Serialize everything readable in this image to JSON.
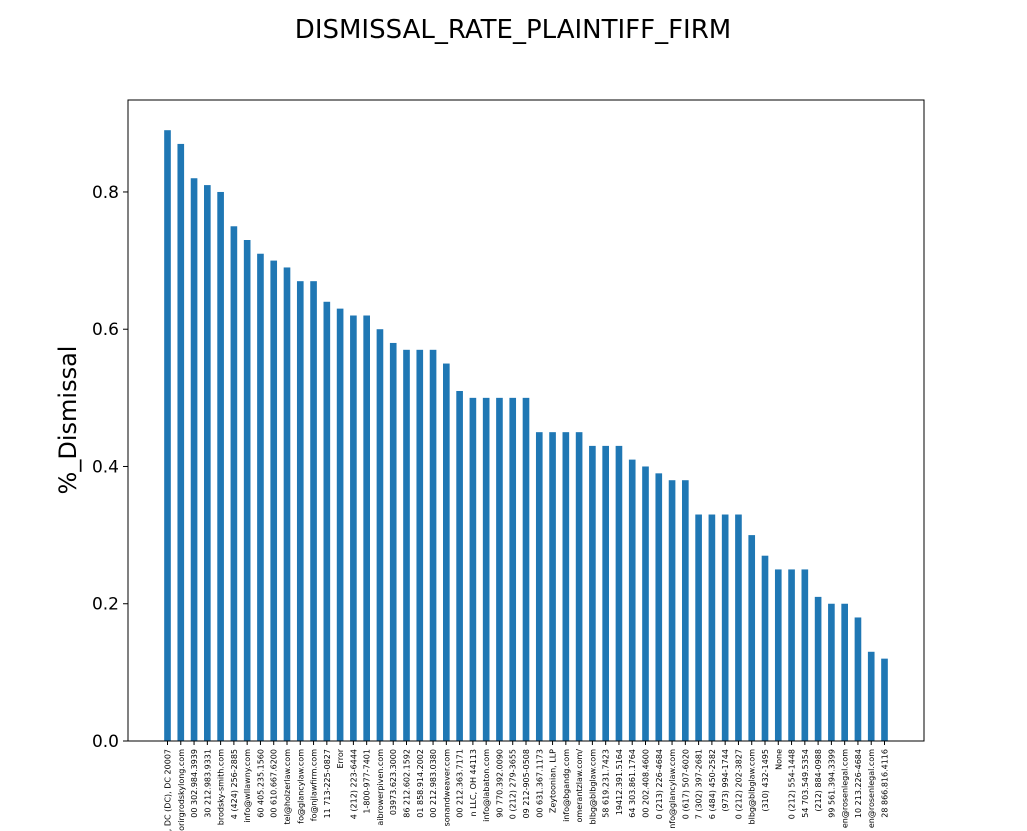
{
  "chart_data": {
    "type": "bar",
    "title": "DISMISSAL_RATE_PLAINTIFF_FIRM",
    "xlabel": "",
    "ylabel": "%_Dismissal",
    "ylim": [
      0,
      0.934
    ],
    "yticks": [
      "0.0",
      "0.2",
      "0.4",
      "0.6",
      "0.8"
    ],
    "grid": false,
    "bar_color": "#1f77b4",
    "categories": [
      ", DC (DC), DC 20007",
      "orirgrodskylong.com",
      "00 302.984.3939",
      "30 212.983.9331",
      "brodsky-smith.com",
      "4 (424) 256-2885",
      "info@wllawny.com",
      "60 405.235.1560",
      "00 610.667.6200",
      "tel@holzerlaw.com",
      "fo@glancylaw.com",
      "fo@njlawfirm.com",
      "11 713-225-0827",
      "Error",
      "4 (212) 223-6444",
      "1-800-977-7401",
      "aibrowerpiven.com",
      "03973.623.3000",
      "86 212.602.1592",
      "01 858.914.2002",
      "00 212.983.0380",
      "sonandweaver.com",
      "00 212.363.7171",
      "n LLC, OH 44113",
      "info@labaton.com",
      "90 770.392.0090",
      "0 (212) 279-3655",
      "09 212-905-0508",
      "00 631.367.1173",
      "Zeytoonian, LLP",
      "info@bgandg.com",
      "omerantzlaw.com/",
      "blbg@blbglaw.com",
      "58 619.231.7423",
      "19412.391.5164",
      "64 303.861.1764",
      "00 202.408.4600",
      "0 (213) 226-4684",
      "nfo@glancylaw.com",
      "0 (617) 507-6020",
      "7 (302) 397-2681",
      "6 (484) 450-2582",
      "(973) 994-1744",
      "0 (212) 202-3827",
      "blbg@blbglaw.com",
      "(310) 432-1495",
      "None",
      "0 (212) 554-1448",
      "54 703.549.5354",
      "(212) 884-0988",
      "99 561.394.3399",
      "en@rosenlegal.com",
      "10 213.226-4684",
      "en@rosenlegal.com",
      "28 866.816.4116"
    ],
    "values": [
      0.89,
      0.87,
      0.82,
      0.81,
      0.8,
      0.75,
      0.73,
      0.71,
      0.7,
      0.69,
      0.67,
      0.67,
      0.64,
      0.63,
      0.62,
      0.62,
      0.6,
      0.58,
      0.57,
      0.57,
      0.57,
      0.55,
      0.51,
      0.5,
      0.5,
      0.5,
      0.5,
      0.5,
      0.45,
      0.45,
      0.45,
      0.45,
      0.43,
      0.43,
      0.43,
      0.41,
      0.4,
      0.39,
      0.38,
      0.38,
      0.33,
      0.33,
      0.33,
      0.33,
      0.3,
      0.27,
      0.25,
      0.25,
      0.25,
      0.21,
      0.2,
      0.2,
      0.18,
      0.13,
      0.12
    ]
  }
}
